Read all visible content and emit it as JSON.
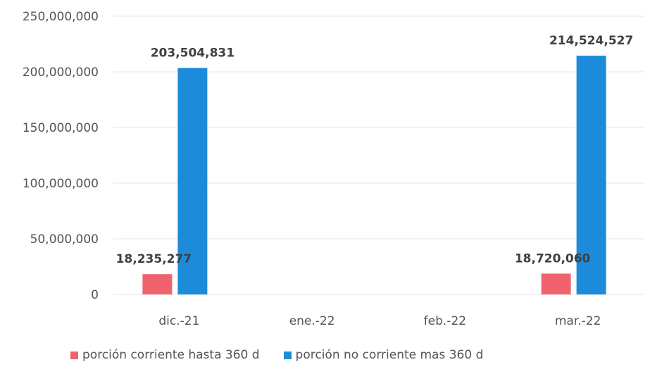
{
  "chart_data": {
    "type": "bar",
    "categories": [
      "dic.-21",
      "ene.-22",
      "feb.-22",
      "mar.-22"
    ],
    "series": [
      {
        "name": "porción corriente hasta 360 d",
        "color": "#F0636E",
        "values": [
          18235277,
          null,
          null,
          18720060
        ],
        "labels": [
          "18,235,277",
          "",
          "",
          "18,720,060"
        ]
      },
      {
        "name": "porción no corriente mas 360 d",
        "color": "#1C8CDA",
        "values": [
          203504831,
          null,
          null,
          214524527
        ],
        "labels": [
          "203,504,831",
          "",
          "",
          "214,524,527"
        ]
      }
    ],
    "yticks": [
      "0",
      "50,000,000",
      "100,000,000",
      "150,000,000",
      "200,000,000",
      "250,000,000"
    ],
    "ylim": [
      0,
      250000000
    ],
    "grid": true,
    "legend_position": "bottom"
  }
}
